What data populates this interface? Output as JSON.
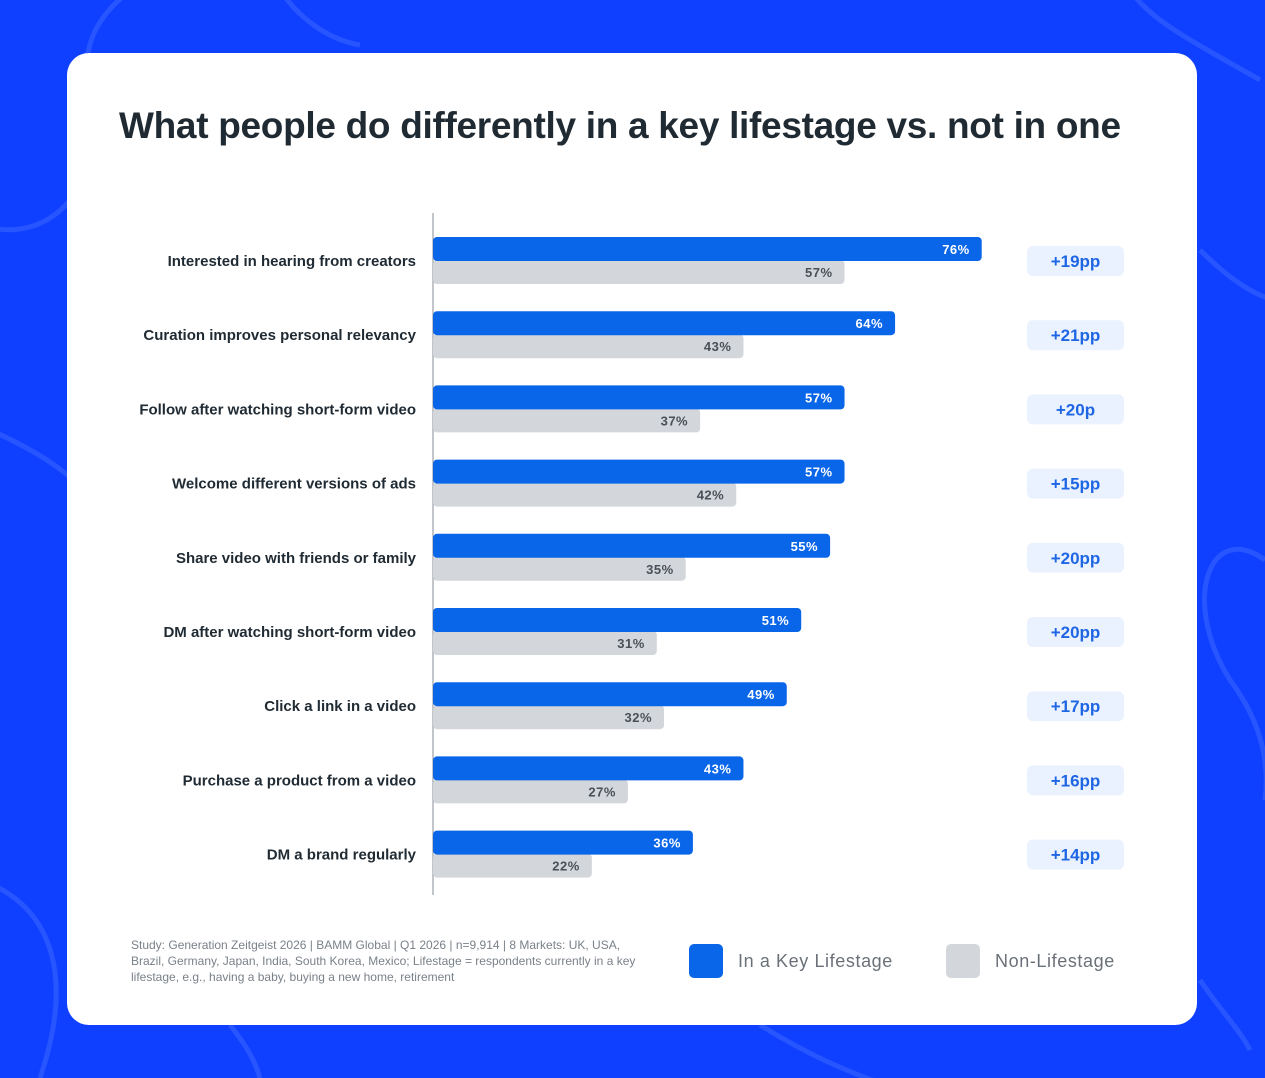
{
  "chart_data": {
    "type": "bar",
    "orientation": "horizontal",
    "title": "What people do differently in a key lifestage vs. not in one",
    "categories": [
      "Interested in hearing from creators",
      "Curation improves personal relevancy",
      "Follow after watching short-form video",
      "Welcome different versions of ads",
      "Share video with friends or family",
      "DM after watching short-form video",
      "Click a link in a video",
      "Purchase a product from a video",
      "DM a brand regularly"
    ],
    "series": [
      {
        "name": "In a Key Lifestage",
        "color": "#0a66e8",
        "values": [
          76,
          64,
          57,
          57,
          55,
          51,
          49,
          43,
          36
        ],
        "labels": [
          "76%",
          "64%",
          "57%",
          "57%",
          "55%",
          "51%",
          "49%",
          "43%",
          "36%"
        ]
      },
      {
        "name": "Non-Lifestage",
        "color": "#d3d6db",
        "values": [
          57,
          43,
          37,
          42,
          35,
          31,
          32,
          27,
          22
        ],
        "labels": [
          "57%",
          "43%",
          "37%",
          "42%",
          "35%",
          "31%",
          "32%",
          "27%",
          "22%"
        ]
      }
    ],
    "differences": [
      "+19pp",
      "+21pp",
      "+20p",
      "+15pp",
      "+20pp",
      "+20pp",
      "+17pp",
      "+16pp",
      "+14pp"
    ],
    "xlim": [
      0,
      100
    ],
    "xlabel": "",
    "ylabel": "",
    "grid": false,
    "legend_position": "bottom-right"
  },
  "legend": {
    "key_lifestage": "In a Key Lifestage",
    "non_lifestage": "Non-Lifestage"
  },
  "footnote": "Study: Generation Zeitgeist 2026 | BAMM Global | Q1 2026 | n=9,914 | 8 Markets: UK, USA, Brazil, Germany, Japan, India, South Korea, Mexico; Lifestage = respondents currently in a key lifestage, e.g., having a baby, buying a new home, retirement",
  "colors": {
    "background": "#1040ff",
    "card": "#ffffff",
    "key_lifestage": "#0a66e8",
    "non_lifestage": "#d3d6db",
    "diff_badge_bg": "#eaf2ff",
    "diff_badge_text": "#1f66e5",
    "title_text": "#1f2a33"
  }
}
